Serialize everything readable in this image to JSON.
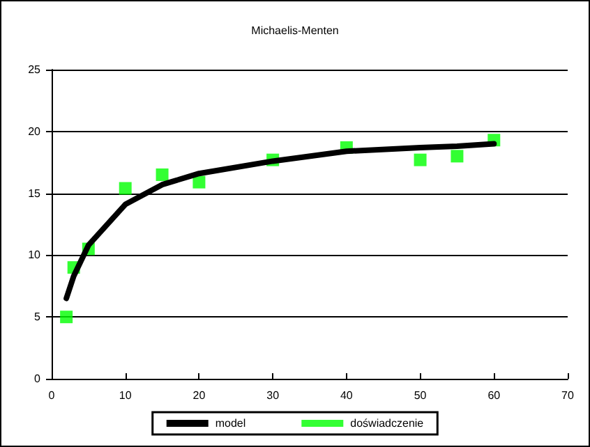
{
  "chart_data": {
    "type": "scatter",
    "title": "Michaelis-Menten",
    "xlim": [
      0,
      70
    ],
    "xticks": [
      0,
      10,
      20,
      30,
      40,
      50,
      60,
      70
    ],
    "ylim": [
      0,
      25
    ],
    "yticks": [
      0,
      5,
      10,
      15,
      20,
      25
    ],
    "grid": "y",
    "legend": "bottom",
    "series": [
      {
        "name": "model",
        "type": "line",
        "color": "#000000",
        "marker": "none",
        "x": [
          2,
          3,
          5,
          10,
          15,
          20,
          30,
          40,
          50,
          55,
          60
        ],
        "values": [
          6.5,
          8.3,
          10.8,
          14.1,
          15.7,
          16.6,
          17.6,
          18.4,
          18.7,
          18.8,
          19.0
        ]
      },
      {
        "name": "doświadczenie",
        "color": "#00ff00",
        "marker": "square",
        "x": [
          2,
          3,
          5,
          10,
          15,
          20,
          30,
          40,
          50,
          55,
          60
        ],
        "values": [
          5.0,
          9.0,
          10.5,
          15.4,
          16.5,
          15.9,
          17.7,
          18.7,
          17.7,
          18.0,
          19.3
        ]
      }
    ]
  }
}
